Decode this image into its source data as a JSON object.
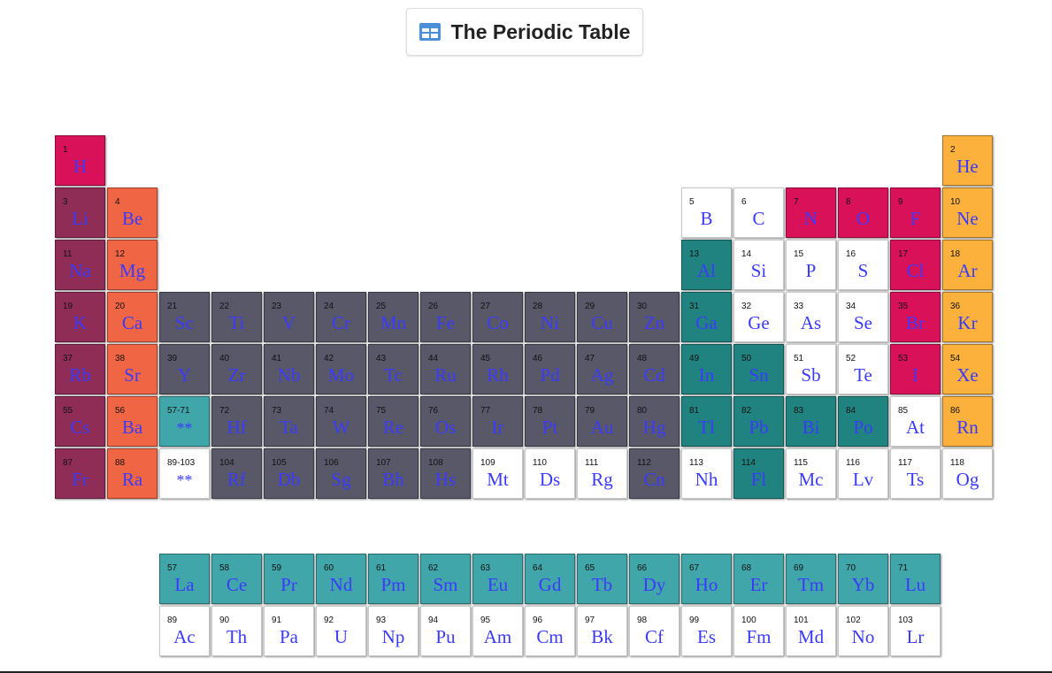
{
  "header": {
    "title": "The Periodic Table",
    "icon": "table-icon"
  },
  "colors": {
    "nonmetal": "#d81159",
    "alkali": "#8f2d56",
    "alkaline": "#f06543",
    "transition": "#585869",
    "post": "#218380",
    "metalloid": "#ffffff",
    "noble": "#fbb13c",
    "fblock": "#41a6a9",
    "unknown": "#ffffff",
    "placeholder": "#41a6a9",
    "symbol_text": "#3a3aff"
  },
  "main_elements": [
    {
      "n": "1",
      "s": "H",
      "c": "nonmetal"
    },
    {
      "n": "2",
      "s": "He",
      "c": "noble"
    },
    {
      "n": "3",
      "s": "Li",
      "c": "alkali"
    },
    {
      "n": "4",
      "s": "Be",
      "c": "alkaline"
    },
    {
      "n": "5",
      "s": "B",
      "c": "metalloid"
    },
    {
      "n": "6",
      "s": "C",
      "c": "metalloid"
    },
    {
      "n": "7",
      "s": "N",
      "c": "nonmetal"
    },
    {
      "n": "8",
      "s": "O",
      "c": "nonmetal"
    },
    {
      "n": "9",
      "s": "F",
      "c": "nonmetal"
    },
    {
      "n": "10",
      "s": "Ne",
      "c": "noble"
    },
    {
      "n": "11",
      "s": "Na",
      "c": "alkali"
    },
    {
      "n": "12",
      "s": "Mg",
      "c": "alkaline"
    },
    {
      "n": "13",
      "s": "Al",
      "c": "post"
    },
    {
      "n": "14",
      "s": "Si",
      "c": "metalloid"
    },
    {
      "n": "15",
      "s": "P",
      "c": "metalloid"
    },
    {
      "n": "16",
      "s": "S",
      "c": "metalloid"
    },
    {
      "n": "17",
      "s": "Cl",
      "c": "nonmetal"
    },
    {
      "n": "18",
      "s": "Ar",
      "c": "noble"
    },
    {
      "n": "19",
      "s": "K",
      "c": "alkali"
    },
    {
      "n": "20",
      "s": "Ca",
      "c": "alkaline"
    },
    {
      "n": "21",
      "s": "Sc",
      "c": "transition"
    },
    {
      "n": "22",
      "s": "Ti",
      "c": "transition"
    },
    {
      "n": "23",
      "s": "V",
      "c": "transition"
    },
    {
      "n": "24",
      "s": "Cr",
      "c": "transition"
    },
    {
      "n": "25",
      "s": "Mn",
      "c": "transition"
    },
    {
      "n": "26",
      "s": "Fe",
      "c": "transition"
    },
    {
      "n": "27",
      "s": "Co",
      "c": "transition"
    },
    {
      "n": "28",
      "s": "Ni",
      "c": "transition"
    },
    {
      "n": "29",
      "s": "Cu",
      "c": "transition"
    },
    {
      "n": "30",
      "s": "Zn",
      "c": "transition"
    },
    {
      "n": "31",
      "s": "Ga",
      "c": "post"
    },
    {
      "n": "32",
      "s": "Ge",
      "c": "metalloid"
    },
    {
      "n": "33",
      "s": "As",
      "c": "metalloid"
    },
    {
      "n": "34",
      "s": "Se",
      "c": "metalloid"
    },
    {
      "n": "35",
      "s": "Br",
      "c": "nonmetal"
    },
    {
      "n": "36",
      "s": "Kr",
      "c": "noble"
    },
    {
      "n": "37",
      "s": "Rb",
      "c": "alkali"
    },
    {
      "n": "38",
      "s": "Sr",
      "c": "alkaline"
    },
    {
      "n": "39",
      "s": "Y",
      "c": "transition"
    },
    {
      "n": "40",
      "s": "Zr",
      "c": "transition"
    },
    {
      "n": "41",
      "s": "Nb",
      "c": "transition"
    },
    {
      "n": "42",
      "s": "Mo",
      "c": "transition"
    },
    {
      "n": "43",
      "s": "Tc",
      "c": "transition"
    },
    {
      "n": "44",
      "s": "Ru",
      "c": "transition"
    },
    {
      "n": "45",
      "s": "Rh",
      "c": "transition"
    },
    {
      "n": "46",
      "s": "Pd",
      "c": "transition"
    },
    {
      "n": "47",
      "s": "Ag",
      "c": "transition"
    },
    {
      "n": "48",
      "s": "Cd",
      "c": "transition"
    },
    {
      "n": "49",
      "s": "In",
      "c": "post"
    },
    {
      "n": "50",
      "s": "Sn",
      "c": "post"
    },
    {
      "n": "51",
      "s": "Sb",
      "c": "metalloid"
    },
    {
      "n": "52",
      "s": "Te",
      "c": "metalloid"
    },
    {
      "n": "53",
      "s": "I",
      "c": "nonmetal"
    },
    {
      "n": "54",
      "s": "Xe",
      "c": "noble"
    },
    {
      "n": "55",
      "s": "Cs",
      "c": "alkali"
    },
    {
      "n": "56",
      "s": "Ba",
      "c": "alkaline"
    },
    {
      "n": "57-71",
      "s": "**",
      "c": "placeholder"
    },
    {
      "n": "72",
      "s": "Hf",
      "c": "transition"
    },
    {
      "n": "73",
      "s": "Ta",
      "c": "transition"
    },
    {
      "n": "74",
      "s": "W",
      "c": "transition"
    },
    {
      "n": "75",
      "s": "Re",
      "c": "transition"
    },
    {
      "n": "76",
      "s": "Os",
      "c": "transition"
    },
    {
      "n": "77",
      "s": "Ir",
      "c": "transition"
    },
    {
      "n": "78",
      "s": "Pt",
      "c": "transition"
    },
    {
      "n": "79",
      "s": "Au",
      "c": "transition"
    },
    {
      "n": "80",
      "s": "Hg",
      "c": "transition"
    },
    {
      "n": "81",
      "s": "Tl",
      "c": "post"
    },
    {
      "n": "82",
      "s": "Pb",
      "c": "post"
    },
    {
      "n": "83",
      "s": "Bi",
      "c": "post"
    },
    {
      "n": "84",
      "s": "Po",
      "c": "post"
    },
    {
      "n": "85",
      "s": "At",
      "c": "metalloid"
    },
    {
      "n": "86",
      "s": "Rn",
      "c": "noble"
    },
    {
      "n": "87",
      "s": "Fr",
      "c": "alkali"
    },
    {
      "n": "88",
      "s": "Ra",
      "c": "alkaline"
    },
    {
      "n": "89-103",
      "s": "**",
      "c": "unknown"
    },
    {
      "n": "104",
      "s": "Rf",
      "c": "transition"
    },
    {
      "n": "105",
      "s": "Db",
      "c": "transition"
    },
    {
      "n": "106",
      "s": "Sg",
      "c": "transition"
    },
    {
      "n": "107",
      "s": "Bh",
      "c": "transition"
    },
    {
      "n": "108",
      "s": "Hs",
      "c": "transition"
    },
    {
      "n": "109",
      "s": "Mt",
      "c": "unknown"
    },
    {
      "n": "110",
      "s": "Ds",
      "c": "unknown"
    },
    {
      "n": "111",
      "s": "Rg",
      "c": "unknown"
    },
    {
      "n": "112",
      "s": "Cn",
      "c": "transition"
    },
    {
      "n": "113",
      "s": "Nh",
      "c": "unknown"
    },
    {
      "n": "114",
      "s": "Fl",
      "c": "post"
    },
    {
      "n": "115",
      "s": "Mc",
      "c": "unknown"
    },
    {
      "n": "116",
      "s": "Lv",
      "c": "unknown"
    },
    {
      "n": "117",
      "s": "Ts",
      "c": "unknown"
    },
    {
      "n": "118",
      "s": "Og",
      "c": "unknown"
    }
  ],
  "f_block": [
    {
      "n": "57",
      "s": "La",
      "c": "fblock"
    },
    {
      "n": "58",
      "s": "Ce",
      "c": "fblock"
    },
    {
      "n": "59",
      "s": "Pr",
      "c": "fblock"
    },
    {
      "n": "60",
      "s": "Nd",
      "c": "fblock"
    },
    {
      "n": "61",
      "s": "Pm",
      "c": "fblock"
    },
    {
      "n": "62",
      "s": "Sm",
      "c": "fblock"
    },
    {
      "n": "63",
      "s": "Eu",
      "c": "fblock"
    },
    {
      "n": "64",
      "s": "Gd",
      "c": "fblock"
    },
    {
      "n": "65",
      "s": "Tb",
      "c": "fblock"
    },
    {
      "n": "66",
      "s": "Dy",
      "c": "fblock"
    },
    {
      "n": "67",
      "s": "Ho",
      "c": "fblock"
    },
    {
      "n": "68",
      "s": "Er",
      "c": "fblock"
    },
    {
      "n": "69",
      "s": "Tm",
      "c": "fblock"
    },
    {
      "n": "70",
      "s": "Yb",
      "c": "fblock"
    },
    {
      "n": "71",
      "s": "Lu",
      "c": "fblock"
    },
    {
      "n": "89",
      "s": "Ac",
      "c": "unknown"
    },
    {
      "n": "90",
      "s": "Th",
      "c": "unknown"
    },
    {
      "n": "91",
      "s": "Pa",
      "c": "unknown"
    },
    {
      "n": "92",
      "s": "U",
      "c": "unknown"
    },
    {
      "n": "93",
      "s": "Np",
      "c": "unknown"
    },
    {
      "n": "94",
      "s": "Pu",
      "c": "unknown"
    },
    {
      "n": "95",
      "s": "Am",
      "c": "unknown"
    },
    {
      "n": "96",
      "s": "Cm",
      "c": "unknown"
    },
    {
      "n": "97",
      "s": "Bk",
      "c": "unknown"
    },
    {
      "n": "98",
      "s": "Cf",
      "c": "unknown"
    },
    {
      "n": "99",
      "s": "Es",
      "c": "unknown"
    },
    {
      "n": "100",
      "s": "Fm",
      "c": "unknown"
    },
    {
      "n": "101",
      "s": "Md",
      "c": "unknown"
    },
    {
      "n": "102",
      "s": "No",
      "c": "unknown"
    },
    {
      "n": "103",
      "s": "Lr",
      "c": "unknown"
    }
  ]
}
